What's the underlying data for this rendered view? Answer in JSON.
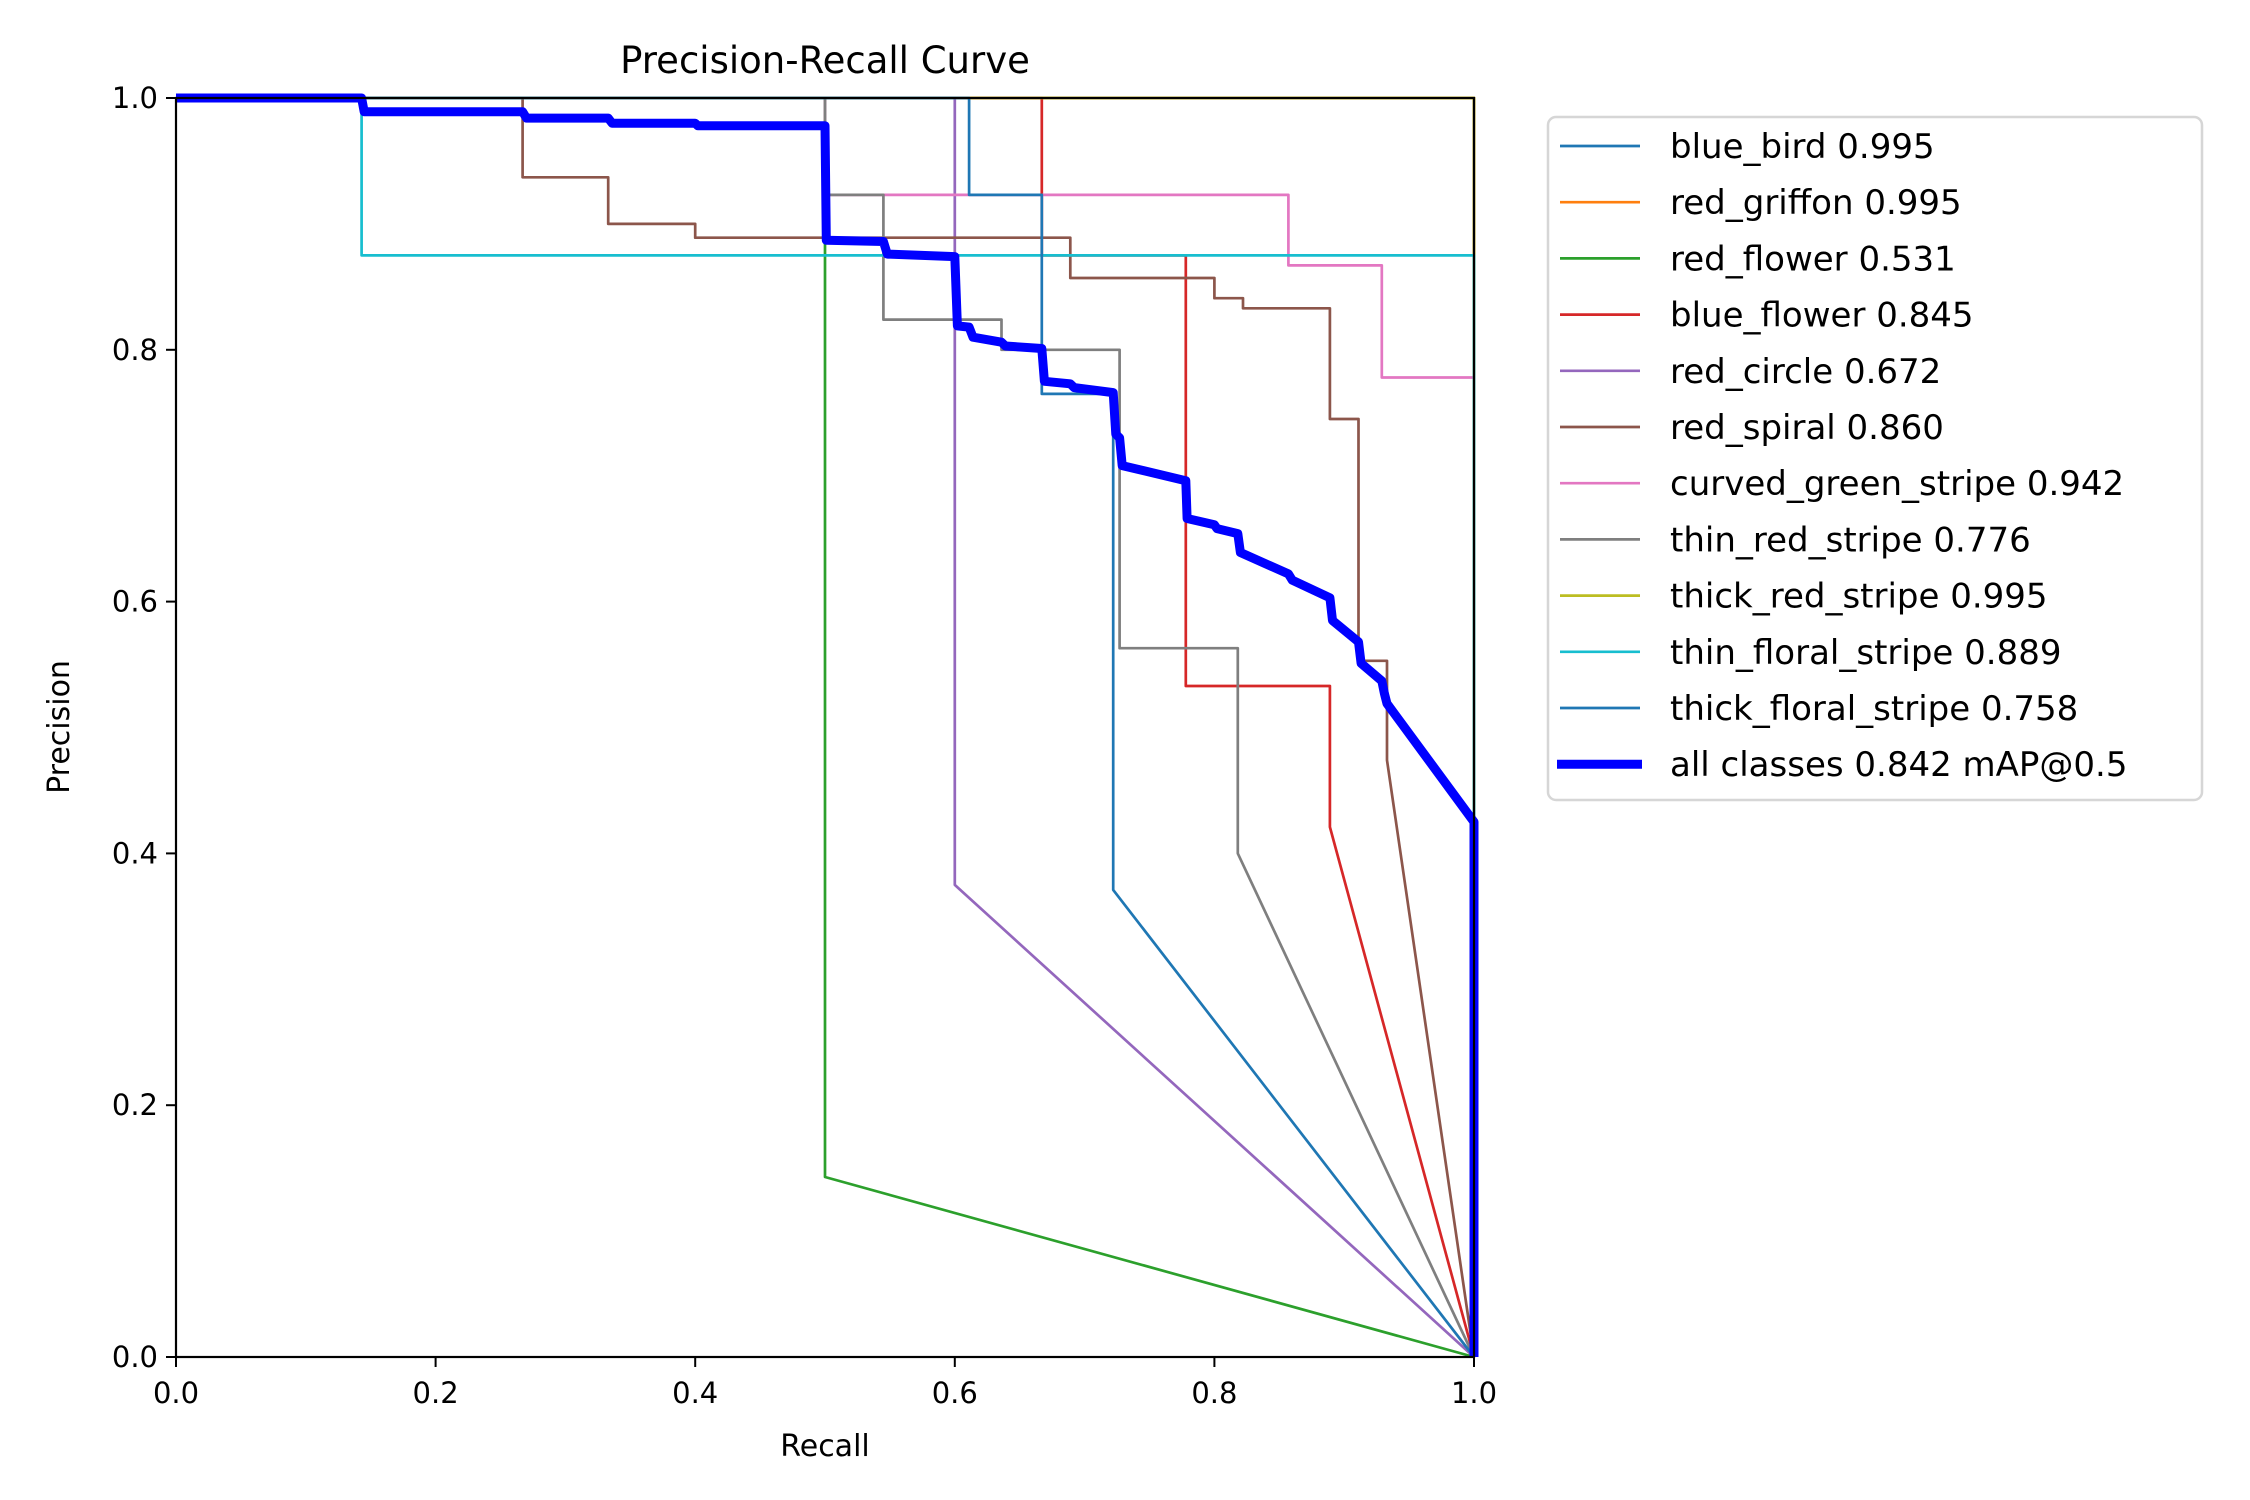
{
  "chart_data": {
    "type": "line",
    "title": "Precision-Recall Curve",
    "xlabel": "Recall",
    "ylabel": "Precision",
    "xlim": [
      0,
      1
    ],
    "ylim": [
      0,
      1
    ],
    "xticks": [
      "0.0",
      "0.2",
      "0.4",
      "0.6",
      "0.8",
      "1.0"
    ],
    "yticks": [
      "0.0",
      "0.2",
      "0.4",
      "0.6",
      "0.8",
      "1.0"
    ],
    "grid": false,
    "legend_position": "outside-top-right",
    "series": [
      {
        "name": "blue_bird 0.995",
        "color": "#1f77b4",
        "width": 1,
        "points": [
          [
            0,
            1
          ],
          [
            1,
            1
          ],
          [
            1,
            0
          ]
        ]
      },
      {
        "name": "red_griffon 0.995",
        "color": "#ff7f0e",
        "width": 1,
        "points": [
          [
            0,
            1
          ],
          [
            1,
            1
          ],
          [
            1,
            0
          ]
        ]
      },
      {
        "name": "red_flower 0.531",
        "color": "#2ca02c",
        "width": 1,
        "points": [
          [
            0,
            1
          ],
          [
            0.5,
            1
          ],
          [
            0.5,
            0.143
          ],
          [
            1,
            0
          ]
        ]
      },
      {
        "name": "blue_flower 0.845",
        "color": "#d62728",
        "width": 1,
        "points": [
          [
            0,
            1
          ],
          [
            0.667,
            1
          ],
          [
            0.667,
            0.875
          ],
          [
            0.778,
            0.875
          ],
          [
            0.778,
            0.533
          ],
          [
            0.889,
            0.533
          ],
          [
            0.889,
            0.421
          ],
          [
            1,
            0
          ]
        ]
      },
      {
        "name": "red_circle 0.672",
        "color": "#9467bd",
        "width": 1,
        "points": [
          [
            0,
            1
          ],
          [
            0.6,
            1
          ],
          [
            0.6,
            0.375
          ],
          [
            1,
            0
          ]
        ]
      },
      {
        "name": "red_spiral 0.860",
        "color": "#8c564b",
        "width": 1,
        "points": [
          [
            0,
            1
          ],
          [
            0.267,
            1
          ],
          [
            0.267,
            0.937
          ],
          [
            0.333,
            0.937
          ],
          [
            0.333,
            0.9
          ],
          [
            0.4,
            0.9
          ],
          [
            0.4,
            0.889
          ],
          [
            0.689,
            0.889
          ],
          [
            0.689,
            0.857
          ],
          [
            0.8,
            0.857
          ],
          [
            0.8,
            0.841
          ],
          [
            0.822,
            0.841
          ],
          [
            0.822,
            0.833
          ],
          [
            0.889,
            0.833
          ],
          [
            0.889,
            0.745
          ],
          [
            0.911,
            0.745
          ],
          [
            0.911,
            0.553
          ],
          [
            0.933,
            0.553
          ],
          [
            0.933,
            0.474
          ],
          [
            1,
            0
          ]
        ]
      },
      {
        "name": "curved_green_stripe 0.942",
        "color": "#e377c2",
        "width": 1,
        "points": [
          [
            0,
            1
          ],
          [
            0.5,
            1
          ],
          [
            0.5,
            0.923
          ],
          [
            0.857,
            0.923
          ],
          [
            0.857,
            0.867
          ],
          [
            0.929,
            0.867
          ],
          [
            0.929,
            0.778
          ],
          [
            1,
            0.778
          ],
          [
            1,
            0
          ]
        ]
      },
      {
        "name": "thin_red_stripe 0.776",
        "color": "#7f7f7f",
        "width": 1,
        "points": [
          [
            0,
            1
          ],
          [
            0.5,
            1
          ],
          [
            0.5,
            0.923
          ],
          [
            0.545,
            0.923
          ],
          [
            0.545,
            0.824
          ],
          [
            0.636,
            0.824
          ],
          [
            0.636,
            0.8
          ],
          [
            0.727,
            0.8
          ],
          [
            0.727,
            0.563
          ],
          [
            0.818,
            0.563
          ],
          [
            0.818,
            0.4
          ],
          [
            1,
            0
          ]
        ]
      },
      {
        "name": "thick_red_stripe 0.995",
        "color": "#bcbd22",
        "width": 1,
        "points": [
          [
            0,
            1
          ],
          [
            1,
            1
          ],
          [
            1,
            0
          ]
        ]
      },
      {
        "name": "thin_floral_stripe 0.889",
        "color": "#17becf",
        "width": 1,
        "points": [
          [
            0,
            1
          ],
          [
            0.143,
            1
          ],
          [
            0.143,
            0.875
          ],
          [
            1,
            0.875
          ],
          [
            1,
            0
          ]
        ]
      },
      {
        "name": "thick_floral_stripe 0.758",
        "color": "#1f77b4",
        "width": 1,
        "points": [
          [
            0,
            1
          ],
          [
            0.611,
            1
          ],
          [
            0.611,
            0.923
          ],
          [
            0.667,
            0.923
          ],
          [
            0.667,
            0.765
          ],
          [
            0.722,
            0.765
          ],
          [
            0.722,
            0.371
          ],
          [
            1,
            0
          ]
        ]
      },
      {
        "name": "all classes 0.842 mAP@0.5",
        "color": "#0000ff",
        "width": 3,
        "points": [
          [
            0,
            1
          ],
          [
            0.143,
            1
          ],
          [
            0.145,
            0.989
          ],
          [
            0.267,
            0.989
          ],
          [
            0.27,
            0.984
          ],
          [
            0.333,
            0.984
          ],
          [
            0.336,
            0.98
          ],
          [
            0.4,
            0.98
          ],
          [
            0.402,
            0.978
          ],
          [
            0.5,
            0.978
          ],
          [
            0.501,
            0.887
          ],
          [
            0.545,
            0.886
          ],
          [
            0.548,
            0.876
          ],
          [
            0.6,
            0.874
          ],
          [
            0.602,
            0.819
          ],
          [
            0.611,
            0.818
          ],
          [
            0.614,
            0.81
          ],
          [
            0.636,
            0.806
          ],
          [
            0.639,
            0.803
          ],
          [
            0.667,
            0.801
          ],
          [
            0.669,
            0.775
          ],
          [
            0.689,
            0.773
          ],
          [
            0.692,
            0.77
          ],
          [
            0.722,
            0.766
          ],
          [
            0.724,
            0.733
          ],
          [
            0.727,
            0.73
          ],
          [
            0.729,
            0.708
          ],
          [
            0.778,
            0.696
          ],
          [
            0.779,
            0.666
          ],
          [
            0.8,
            0.661
          ],
          [
            0.802,
            0.658
          ],
          [
            0.818,
            0.654
          ],
          [
            0.82,
            0.639
          ],
          [
            0.857,
            0.622
          ],
          [
            0.86,
            0.617
          ],
          [
            0.889,
            0.603
          ],
          [
            0.891,
            0.585
          ],
          [
            0.911,
            0.568
          ],
          [
            0.913,
            0.551
          ],
          [
            0.929,
            0.537
          ],
          [
            0.931,
            0.527
          ],
          [
            0.933,
            0.519
          ],
          [
            1,
            0.425
          ],
          [
            1,
            0
          ]
        ]
      }
    ]
  }
}
